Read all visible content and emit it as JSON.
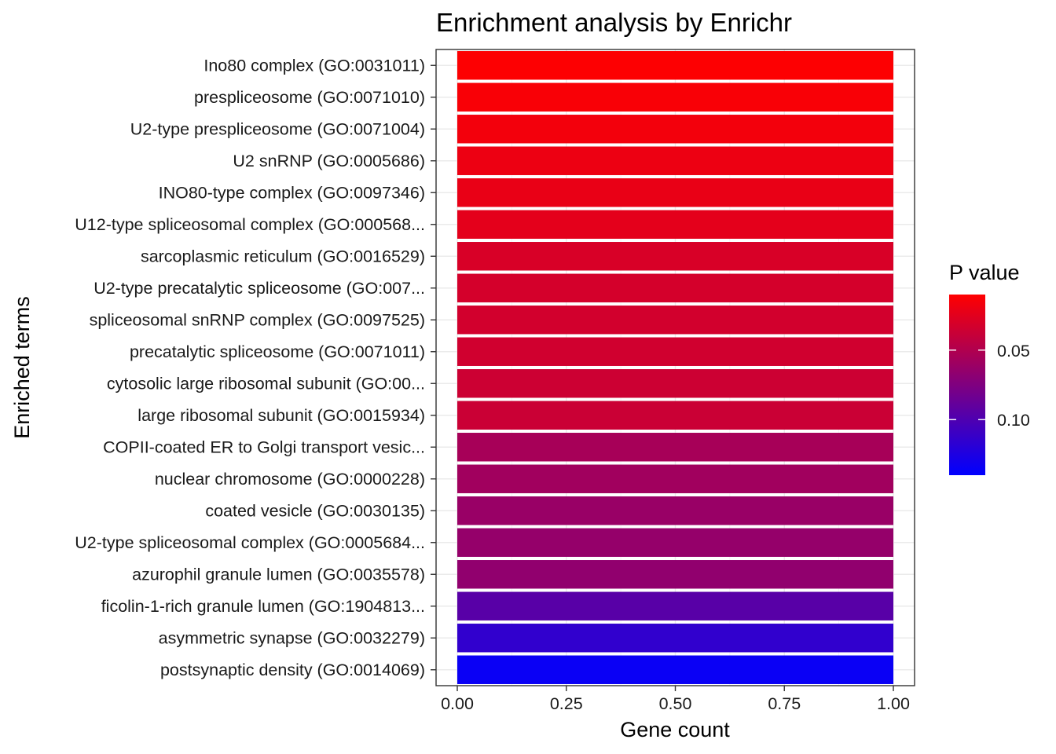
{
  "chart_data": {
    "type": "bar",
    "orientation": "horizontal",
    "title": "Enrichment analysis by Enrichr",
    "xlabel": "Gene count",
    "ylabel": "Enriched terms",
    "xlim": [
      0,
      1
    ],
    "x_ticks": [
      "0.00",
      "0.25",
      "0.50",
      "0.75",
      "1.00"
    ],
    "x_tick_values": [
      0,
      0.25,
      0.5,
      0.75,
      1.0
    ],
    "grid": true,
    "categories": [
      "Ino80 complex (GO:0031011)",
      "prespliceosome (GO:0071010)",
      "U2-type prespliceosome (GO:0071004)",
      "U2 snRNP (GO:0005686)",
      "INO80-type complex (GO:0097346)",
      "U12-type spliceosomal complex (GO:000568...",
      "sarcoplasmic reticulum (GO:0016529)",
      "U2-type precatalytic spliceosome (GO:007...",
      "spliceosomal snRNP complex (GO:0097525)",
      "precatalytic spliceosome (GO:0071011)",
      "cytosolic large ribosomal subunit (GO:00...",
      "large ribosomal subunit (GO:0015934)",
      "COPII-coated ER to Golgi transport vesic...",
      "nuclear chromosome (GO:0000228)",
      "coated vesicle (GO:0030135)",
      "U2-type spliceosomal complex (GO:0005684...",
      "azurophil granule lumen (GO:0035578)",
      "ficolin-1-rich granule lumen (GO:1904813...",
      "asymmetric synapse (GO:0032279)",
      "postsynaptic density (GO:0014069)"
    ],
    "values": [
      1,
      1,
      1,
      1,
      1,
      1,
      1,
      1,
      1,
      1,
      1,
      1,
      1,
      1,
      1,
      1,
      1,
      1,
      1,
      1
    ],
    "p_values": [
      0.011,
      0.013,
      0.016,
      0.019,
      0.021,
      0.024,
      0.03,
      0.032,
      0.033,
      0.034,
      0.036,
      0.037,
      0.055,
      0.058,
      0.062,
      0.064,
      0.066,
      0.095,
      0.115,
      0.135
    ],
    "color_legend": {
      "title": "P value",
      "tick_labels": [
        "0.05",
        "0.10"
      ],
      "tick_values": [
        0.05,
        0.1
      ],
      "range": [
        0.01,
        0.14
      ],
      "reversed": true,
      "low_color": "#ff0000",
      "high_color": "#0000ff"
    }
  }
}
